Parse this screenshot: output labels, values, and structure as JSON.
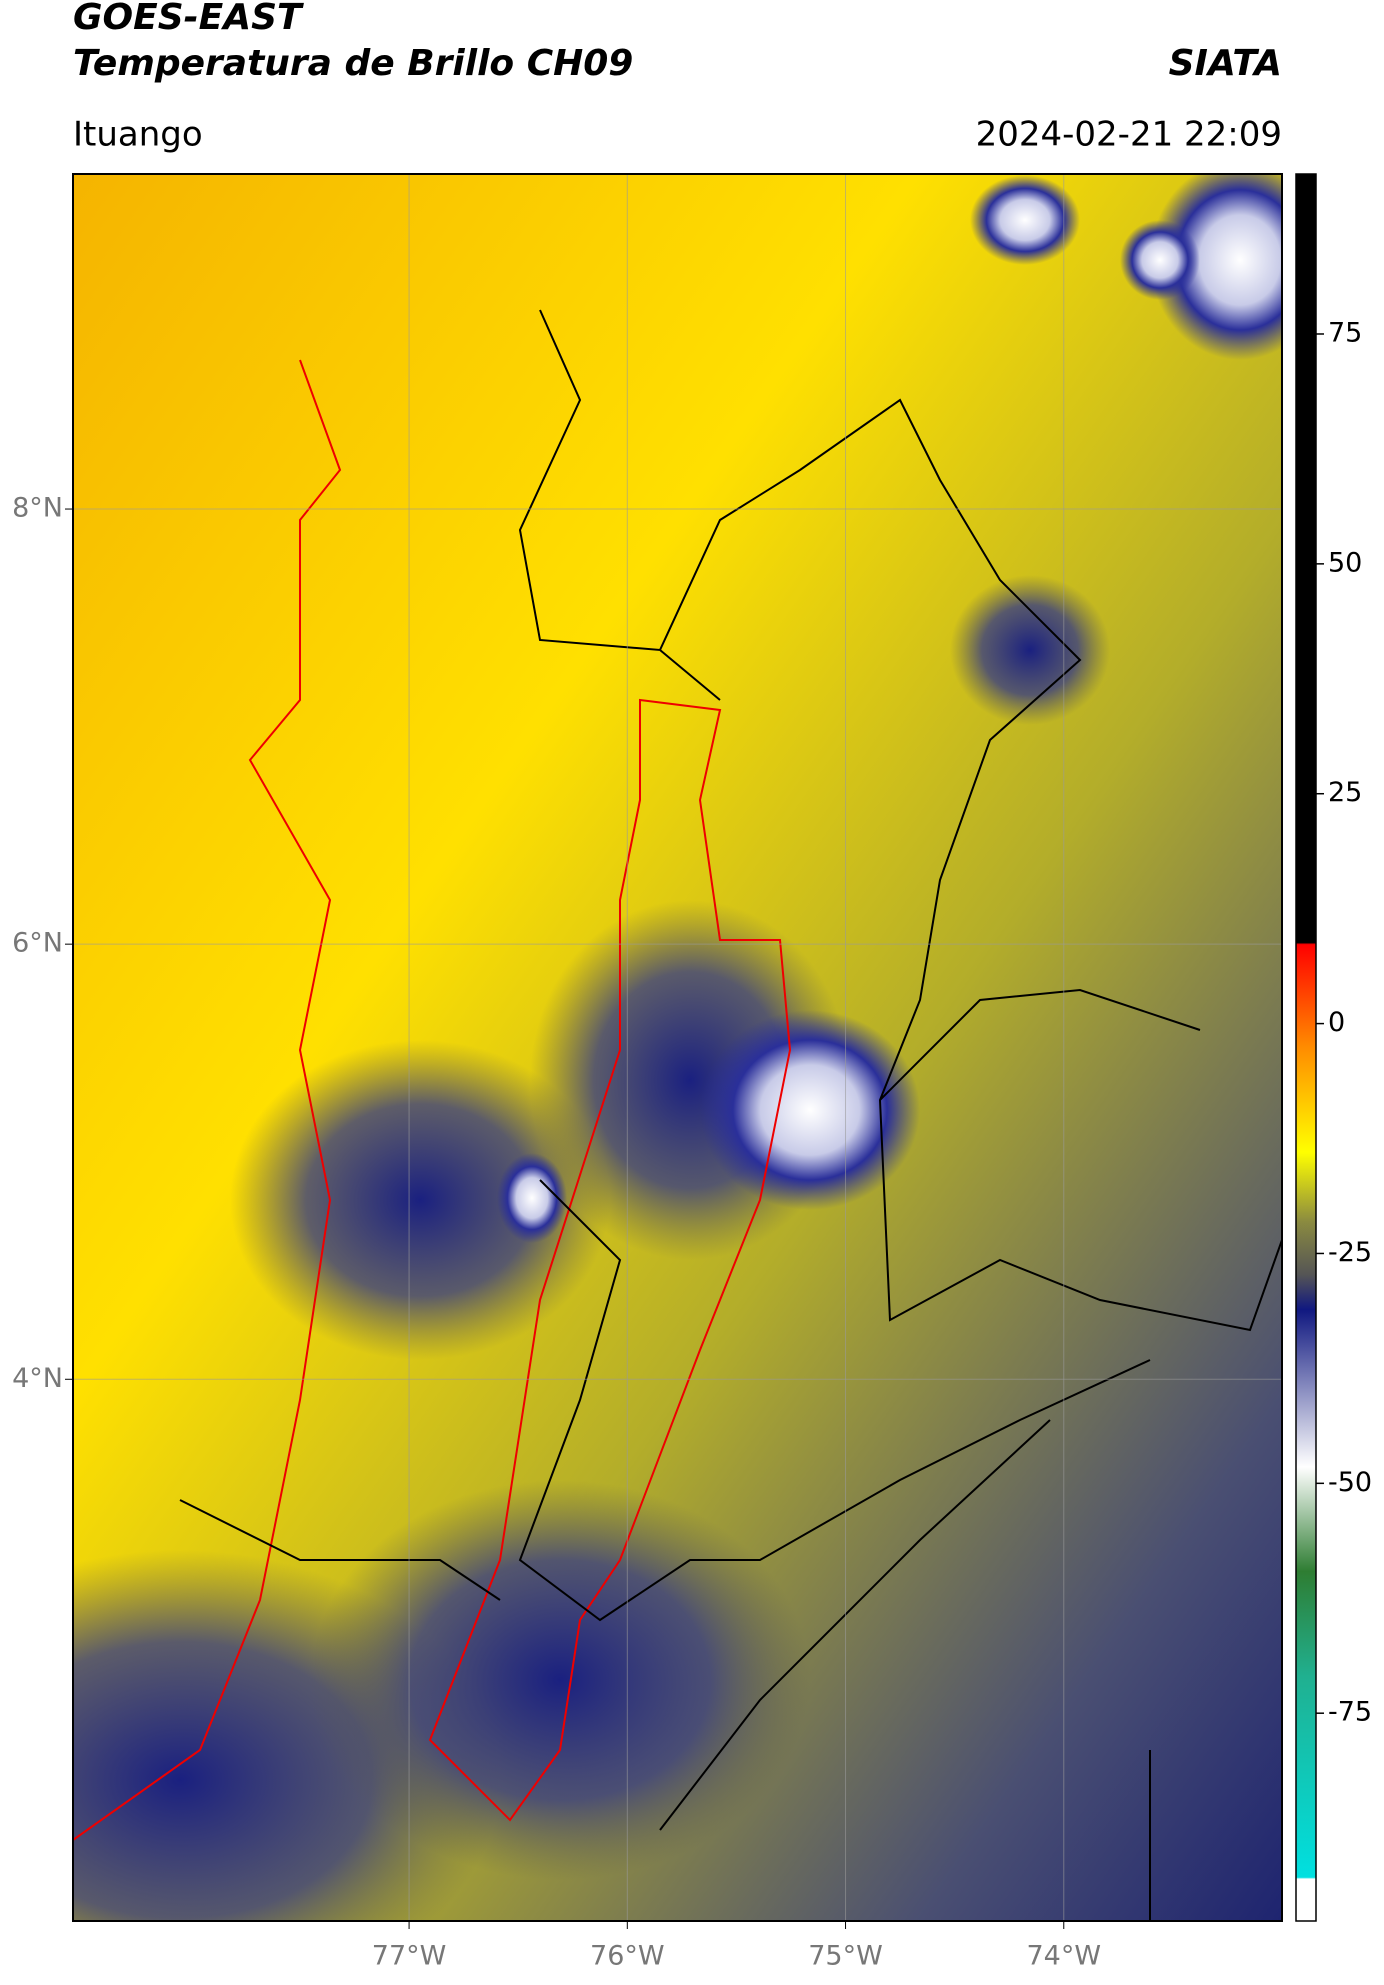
{
  "header": {
    "title_line1": "GOES-EAST",
    "title_line2": "Temperatura de Brillo CH09",
    "source": "SIATA",
    "region": "Ituango",
    "datetime": "2024-02-21 22:09"
  },
  "map": {
    "xlim": [
      -78.54,
      -73.0
    ],
    "ylim": [
      1.51,
      9.54
    ],
    "xticks": [
      {
        "value": -77,
        "label": "77°W"
      },
      {
        "value": -76,
        "label": "76°W"
      },
      {
        "value": -75,
        "label": "75°W"
      },
      {
        "value": -74,
        "label": "74°W"
      }
    ],
    "yticks": [
      {
        "value": 8,
        "label": "8°N"
      },
      {
        "value": 6,
        "label": "6°N"
      },
      {
        "value": 4,
        "label": "4°N"
      }
    ]
  },
  "colorbar": {
    "lim": [
      -97.6,
      92.4
    ],
    "ticks": [
      75,
      50,
      25,
      0,
      -25,
      -50,
      -75
    ]
  }
}
